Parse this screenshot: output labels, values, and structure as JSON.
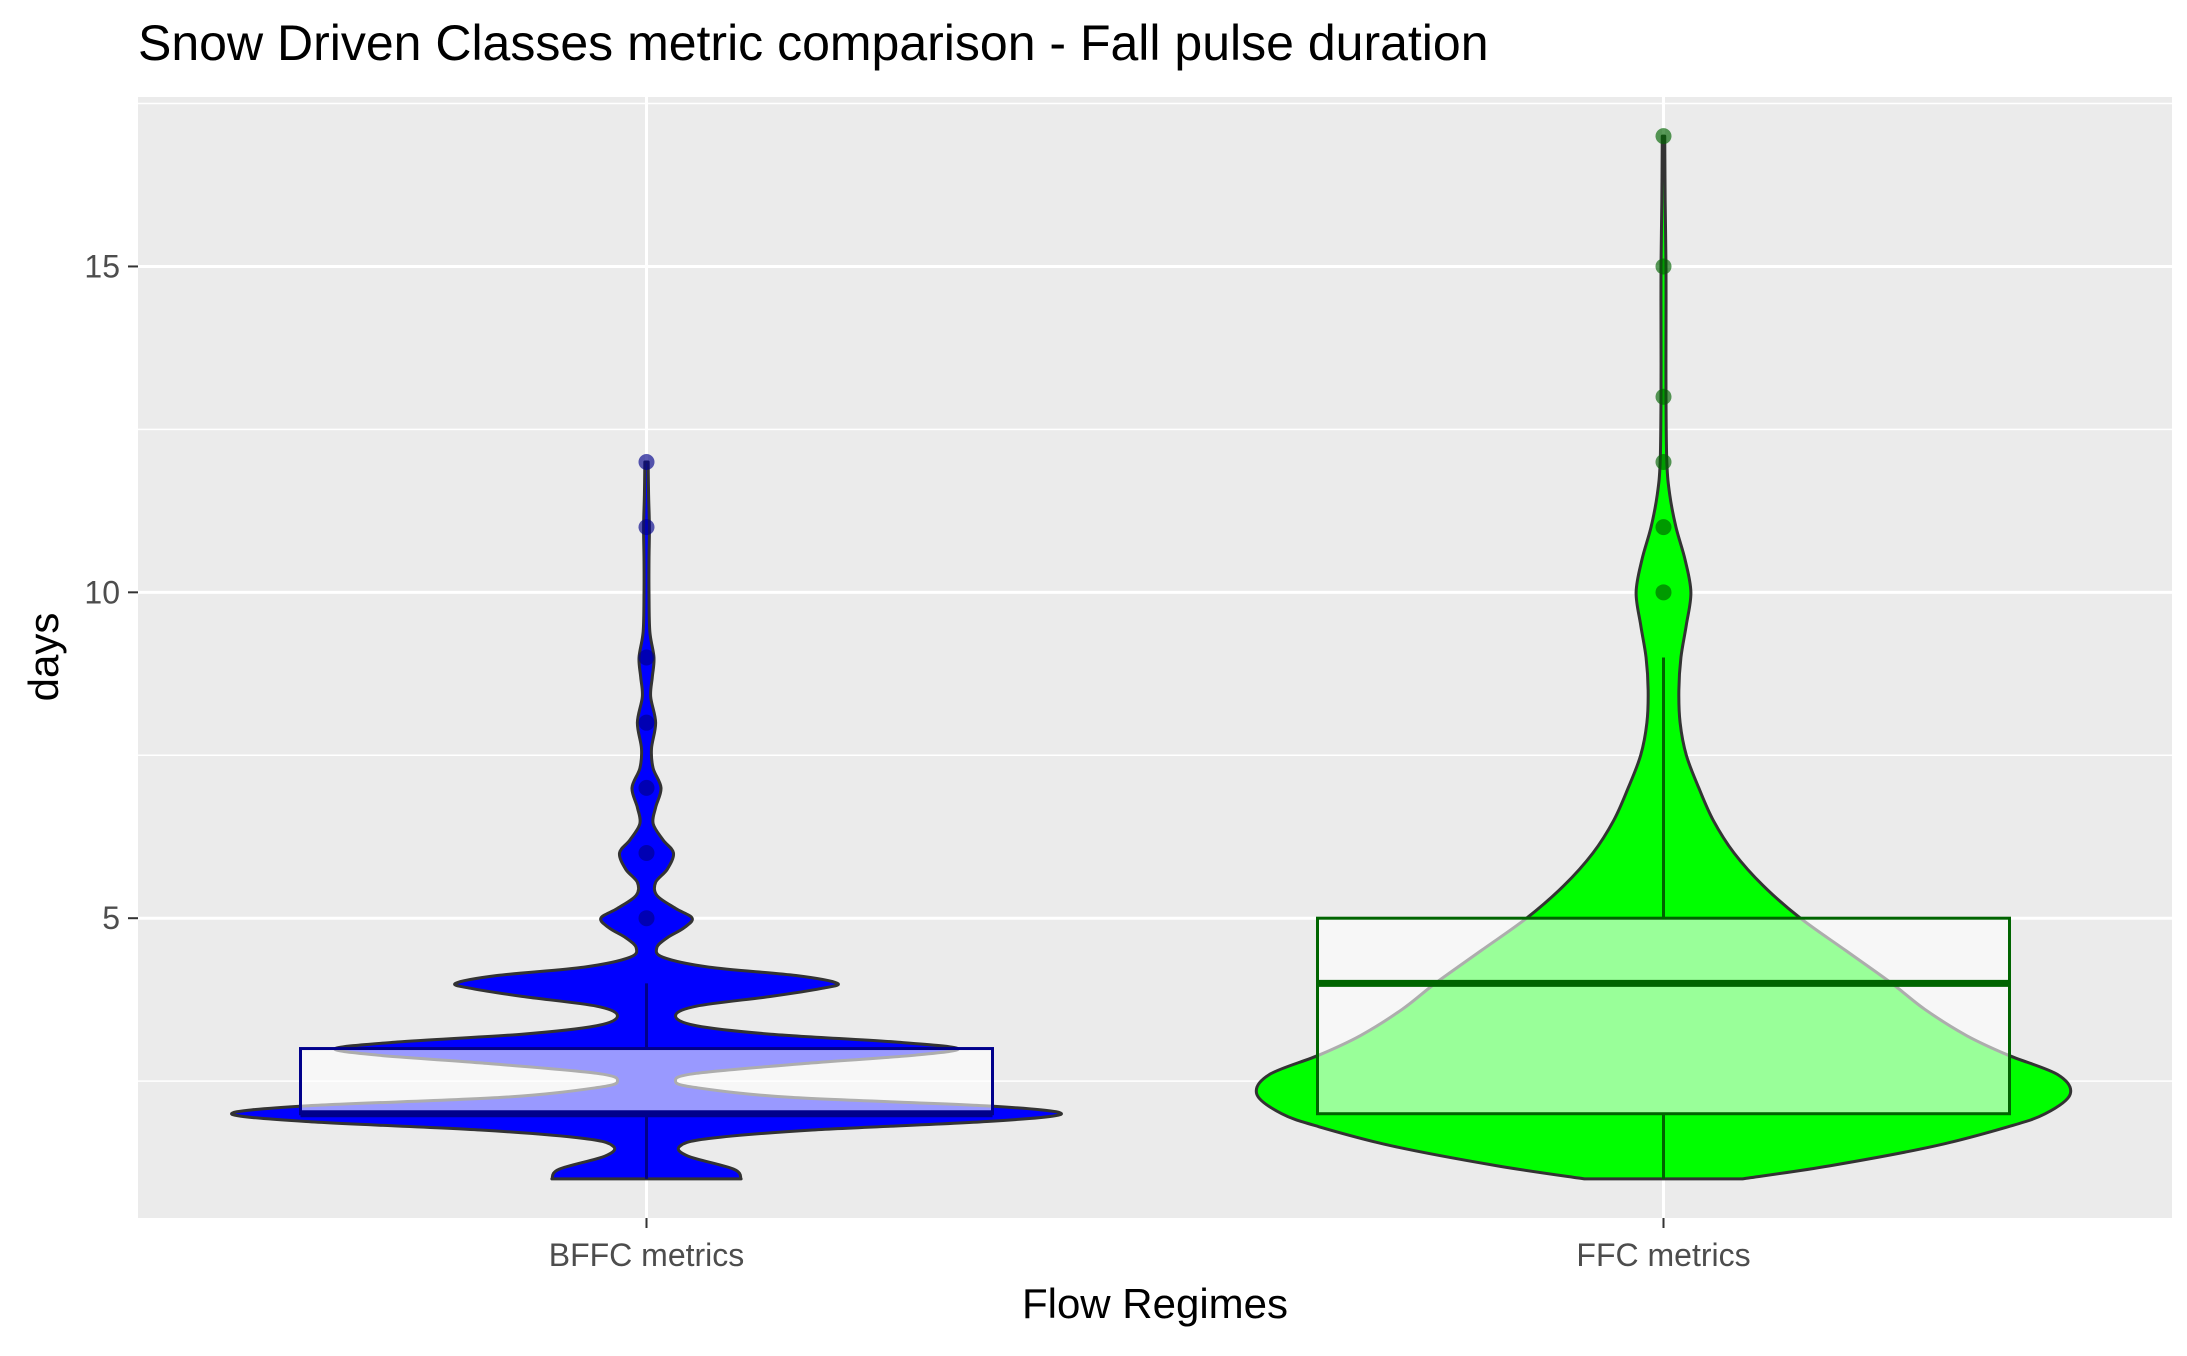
{
  "chart_data": {
    "type": "violin",
    "title": "Snow Driven Classes metric comparison - Fall pulse duration",
    "xlabel": "Flow Regimes",
    "ylabel": "days",
    "ylim": [
      0.4,
      17.6
    ],
    "yticks": [
      5,
      10,
      15
    ],
    "yticks_labels": [
      "5",
      "10",
      "15"
    ],
    "categories": [
      "BFFC metrics",
      "FFC metrics"
    ],
    "grid": true,
    "background": "#ebebeb",
    "series": [
      {
        "category": "BFFC metrics",
        "fill_color": "#0000ff",
        "point_color": "#00008b",
        "box_color": "#00008b",
        "box": {
          "whisker_low": 1,
          "q1": 2,
          "median": 2,
          "q3": 3,
          "whisker_high": 4
        },
        "outliers": [
          5,
          6,
          7,
          8,
          9,
          11,
          12
        ],
        "density": [
          {
            "y": 1.0,
            "w": 0.228
          },
          {
            "y": 1.15,
            "w": 0.21
          },
          {
            "y": 1.35,
            "w": 0.1
          },
          {
            "y": 1.5,
            "w": 0.08
          },
          {
            "y": 1.62,
            "w": 0.15
          },
          {
            "y": 1.75,
            "w": 0.4
          },
          {
            "y": 1.88,
            "w": 0.82
          },
          {
            "y": 2.0,
            "w": 1.0
          },
          {
            "y": 2.12,
            "w": 0.82
          },
          {
            "y": 2.25,
            "w": 0.35
          },
          {
            "y": 2.4,
            "w": 0.12
          },
          {
            "y": 2.5,
            "w": 0.07
          },
          {
            "y": 2.62,
            "w": 0.12
          },
          {
            "y": 2.78,
            "w": 0.4
          },
          {
            "y": 2.9,
            "w": 0.65
          },
          {
            "y": 3.0,
            "w": 0.75
          },
          {
            "y": 3.1,
            "w": 0.6
          },
          {
            "y": 3.22,
            "w": 0.3
          },
          {
            "y": 3.35,
            "w": 0.12
          },
          {
            "y": 3.5,
            "w": 0.07
          },
          {
            "y": 3.65,
            "w": 0.12
          },
          {
            "y": 3.8,
            "w": 0.3
          },
          {
            "y": 3.92,
            "w": 0.42
          },
          {
            "y": 4.0,
            "w": 0.46
          },
          {
            "y": 4.12,
            "w": 0.36
          },
          {
            "y": 4.25,
            "w": 0.15
          },
          {
            "y": 4.4,
            "w": 0.04
          },
          {
            "y": 4.55,
            "w": 0.025
          },
          {
            "y": 4.7,
            "w": 0.05
          },
          {
            "y": 4.85,
            "w": 0.09
          },
          {
            "y": 5.0,
            "w": 0.11
          },
          {
            "y": 5.15,
            "w": 0.07
          },
          {
            "y": 5.35,
            "w": 0.025
          },
          {
            "y": 5.55,
            "w": 0.022
          },
          {
            "y": 5.75,
            "w": 0.05
          },
          {
            "y": 6.0,
            "w": 0.065
          },
          {
            "y": 6.2,
            "w": 0.04
          },
          {
            "y": 6.45,
            "w": 0.016
          },
          {
            "y": 6.7,
            "w": 0.022
          },
          {
            "y": 7.0,
            "w": 0.035
          },
          {
            "y": 7.3,
            "w": 0.016
          },
          {
            "y": 7.6,
            "w": 0.012
          },
          {
            "y": 8.0,
            "w": 0.022
          },
          {
            "y": 8.4,
            "w": 0.01
          },
          {
            "y": 8.7,
            "w": 0.014
          },
          {
            "y": 9.0,
            "w": 0.018
          },
          {
            "y": 9.4,
            "w": 0.008
          },
          {
            "y": 10.0,
            "w": 0.006
          },
          {
            "y": 10.5,
            "w": 0.006
          },
          {
            "y": 11.0,
            "w": 0.007
          },
          {
            "y": 11.5,
            "w": 0.005
          },
          {
            "y": 12.0,
            "w": 0.004
          }
        ]
      },
      {
        "category": "FFC metrics",
        "fill_color": "#00ff00",
        "point_color": "#006400",
        "box_color": "#006400",
        "box": {
          "whisker_low": 1,
          "q1": 2,
          "median": 4,
          "q3": 5,
          "whisker_high": 9
        },
        "outliers": [
          10,
          11,
          12,
          13,
          15,
          17
        ],
        "density": [
          {
            "y": 1.0,
            "w": 0.19
          },
          {
            "y": 1.2,
            "w": 0.4
          },
          {
            "y": 1.5,
            "w": 0.65
          },
          {
            "y": 1.8,
            "w": 0.83
          },
          {
            "y": 2.0,
            "w": 0.92
          },
          {
            "y": 2.3,
            "w": 0.98
          },
          {
            "y": 2.6,
            "w": 0.95
          },
          {
            "y": 2.9,
            "w": 0.83
          },
          {
            "y": 3.2,
            "w": 0.73
          },
          {
            "y": 3.6,
            "w": 0.63
          },
          {
            "y": 4.0,
            "w": 0.55
          },
          {
            "y": 4.5,
            "w": 0.44
          },
          {
            "y": 5.0,
            "w": 0.33
          },
          {
            "y": 5.5,
            "w": 0.24
          },
          {
            "y": 6.0,
            "w": 0.17
          },
          {
            "y": 6.5,
            "w": 0.12
          },
          {
            "y": 7.0,
            "w": 0.085
          },
          {
            "y": 7.5,
            "w": 0.055
          },
          {
            "y": 8.0,
            "w": 0.04
          },
          {
            "y": 8.5,
            "w": 0.037
          },
          {
            "y": 9.0,
            "w": 0.042
          },
          {
            "y": 9.5,
            "w": 0.055
          },
          {
            "y": 10.0,
            "w": 0.066
          },
          {
            "y": 10.5,
            "w": 0.052
          },
          {
            "y": 11.0,
            "w": 0.03
          },
          {
            "y": 11.5,
            "w": 0.015
          },
          {
            "y": 12.0,
            "w": 0.008
          },
          {
            "y": 13.0,
            "w": 0.006
          },
          {
            "y": 14.0,
            "w": 0.006
          },
          {
            "y": 15.0,
            "w": 0.006
          },
          {
            "y": 16.0,
            "w": 0.004
          },
          {
            "y": 17.0,
            "w": 0.003
          }
        ]
      }
    ]
  }
}
